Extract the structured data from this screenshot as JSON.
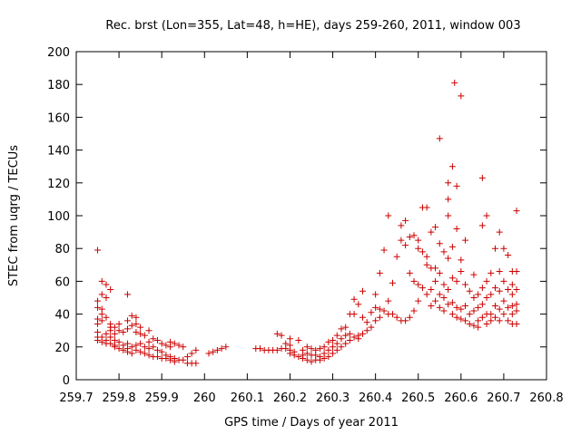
{
  "chart_data": {
    "type": "scatter",
    "title": "Rec. brst (Lon=355, Lat=48, h=HE), days 259-260, 2011, window 003",
    "xlabel": "GPS time / Days of year 2011",
    "ylabel": "STEC from uqrg / TECUs",
    "xlim": [
      259.7,
      260.8
    ],
    "ylim": [
      0,
      200
    ],
    "xticks": [
      "259.7",
      "259.8",
      "259.9",
      "260",
      "260.1",
      "260.2",
      "260.3",
      "260.4",
      "260.5",
      "260.6",
      "260.7",
      "260.8"
    ],
    "yticks": [
      "0",
      "20",
      "40",
      "60",
      "80",
      "100",
      "120",
      "140",
      "160",
      "180",
      "200"
    ],
    "grid": false,
    "marker": "+",
    "color": "#cc0000",
    "points": [
      [
        259.75,
        79
      ],
      [
        259.75,
        48
      ],
      [
        259.75,
        44
      ],
      [
        259.75,
        37
      ],
      [
        259.75,
        34
      ],
      [
        259.75,
        29
      ],
      [
        259.75,
        26
      ],
      [
        259.75,
        24
      ],
      [
        259.76,
        60
      ],
      [
        259.76,
        52
      ],
      [
        259.76,
        43
      ],
      [
        259.76,
        40
      ],
      [
        259.76,
        36
      ],
      [
        259.76,
        26
      ],
      [
        259.76,
        23
      ],
      [
        259.77,
        58
      ],
      [
        259.77,
        50
      ],
      [
        259.77,
        38
      ],
      [
        259.77,
        28
      ],
      [
        259.77,
        24
      ],
      [
        259.77,
        22
      ],
      [
        259.78,
        55
      ],
      [
        259.78,
        34
      ],
      [
        259.78,
        32
      ],
      [
        259.78,
        30
      ],
      [
        259.78,
        26
      ],
      [
        259.78,
        22
      ],
      [
        259.79,
        32
      ],
      [
        259.79,
        28
      ],
      [
        259.79,
        24
      ],
      [
        259.79,
        21
      ],
      [
        259.79,
        20
      ],
      [
        259.8,
        34
      ],
      [
        259.8,
        30
      ],
      [
        259.8,
        23
      ],
      [
        259.8,
        19
      ],
      [
        259.81,
        29
      ],
      [
        259.81,
        21
      ],
      [
        259.81,
        18
      ],
      [
        259.82,
        52
      ],
      [
        259.82,
        36
      ],
      [
        259.82,
        31
      ],
      [
        259.82,
        22
      ],
      [
        259.82,
        19
      ],
      [
        259.82,
        17
      ],
      [
        259.83,
        39
      ],
      [
        259.83,
        33
      ],
      [
        259.83,
        20
      ],
      [
        259.83,
        16
      ],
      [
        259.84,
        38
      ],
      [
        259.84,
        34
      ],
      [
        259.84,
        29
      ],
      [
        259.84,
        21
      ],
      [
        259.84,
        18
      ],
      [
        259.85,
        32
      ],
      [
        259.85,
        28
      ],
      [
        259.85,
        22
      ],
      [
        259.85,
        17
      ],
      [
        259.86,
        27
      ],
      [
        259.86,
        20
      ],
      [
        259.86,
        16
      ],
      [
        259.87,
        30
      ],
      [
        259.87,
        23
      ],
      [
        259.87,
        19
      ],
      [
        259.87,
        15
      ],
      [
        259.88,
        25
      ],
      [
        259.88,
        20
      ],
      [
        259.88,
        14
      ],
      [
        259.89,
        24
      ],
      [
        259.89,
        18
      ],
      [
        259.89,
        14
      ],
      [
        259.9,
        22
      ],
      [
        259.9,
        17
      ],
      [
        259.9,
        13
      ],
      [
        259.91,
        21
      ],
      [
        259.91,
        15
      ],
      [
        259.91,
        13
      ],
      [
        259.92,
        23
      ],
      [
        259.92,
        20
      ],
      [
        259.92,
        14
      ],
      [
        259.92,
        12
      ],
      [
        259.93,
        22
      ],
      [
        259.93,
        13
      ],
      [
        259.93,
        11
      ],
      [
        259.94,
        21
      ],
      [
        259.94,
        12
      ],
      [
        259.95,
        20
      ],
      [
        259.95,
        12
      ],
      [
        259.96,
        14
      ],
      [
        259.96,
        10
      ],
      [
        259.97,
        16
      ],
      [
        259.97,
        10
      ],
      [
        259.98,
        18
      ],
      [
        259.98,
        10
      ],
      [
        260.01,
        16
      ],
      [
        260.02,
        17
      ],
      [
        260.03,
        18
      ],
      [
        260.04,
        19
      ],
      [
        260.05,
        20
      ],
      [
        260.12,
        19
      ],
      [
        260.13,
        19
      ],
      [
        260.14,
        18
      ],
      [
        260.15,
        18
      ],
      [
        260.16,
        18
      ],
      [
        260.17,
        28
      ],
      [
        260.17,
        18
      ],
      [
        260.18,
        27
      ],
      [
        260.18,
        19
      ],
      [
        260.19,
        22
      ],
      [
        260.19,
        19
      ],
      [
        260.2,
        25
      ],
      [
        260.2,
        21
      ],
      [
        260.2,
        18
      ],
      [
        260.2,
        16
      ],
      [
        260.21,
        17
      ],
      [
        260.21,
        15
      ],
      [
        260.22,
        24
      ],
      [
        260.22,
        14
      ],
      [
        260.23,
        18
      ],
      [
        260.23,
        15
      ],
      [
        260.23,
        13
      ],
      [
        260.24,
        20
      ],
      [
        260.24,
        16
      ],
      [
        260.24,
        12
      ],
      [
        260.25,
        19
      ],
      [
        260.25,
        15
      ],
      [
        260.25,
        11
      ],
      [
        260.26,
        18
      ],
      [
        260.26,
        15
      ],
      [
        260.26,
        12
      ],
      [
        260.27,
        19
      ],
      [
        260.27,
        14
      ],
      [
        260.27,
        12
      ],
      [
        260.28,
        20
      ],
      [
        260.28,
        16
      ],
      [
        260.28,
        13
      ],
      [
        260.29,
        23
      ],
      [
        260.29,
        18
      ],
      [
        260.29,
        14
      ],
      [
        260.3,
        24
      ],
      [
        260.3,
        20
      ],
      [
        260.3,
        16
      ],
      [
        260.31,
        27
      ],
      [
        260.31,
        22
      ],
      [
        260.31,
        18
      ],
      [
        260.32,
        31
      ],
      [
        260.32,
        25
      ],
      [
        260.32,
        20
      ],
      [
        260.33,
        32
      ],
      [
        260.33,
        27
      ],
      [
        260.33,
        22
      ],
      [
        260.34,
        40
      ],
      [
        260.34,
        28
      ],
      [
        260.34,
        24
      ],
      [
        260.35,
        49
      ],
      [
        260.35,
        40
      ],
      [
        260.35,
        26
      ],
      [
        260.36,
        46
      ],
      [
        260.36,
        27
      ],
      [
        260.36,
        25
      ],
      [
        260.37,
        54
      ],
      [
        260.37,
        38
      ],
      [
        260.37,
        28
      ],
      [
        260.38,
        35
      ],
      [
        260.38,
        30
      ],
      [
        260.39,
        41
      ],
      [
        260.39,
        32
      ],
      [
        260.4,
        52
      ],
      [
        260.4,
        44
      ],
      [
        260.4,
        36
      ],
      [
        260.41,
        65
      ],
      [
        260.41,
        43
      ],
      [
        260.41,
        38
      ],
      [
        260.42,
        79
      ],
      [
        260.42,
        42
      ],
      [
        260.43,
        100
      ],
      [
        260.43,
        48
      ],
      [
        260.43,
        40
      ],
      [
        260.44,
        59
      ],
      [
        260.44,
        40
      ],
      [
        260.45,
        75
      ],
      [
        260.45,
        38
      ],
      [
        260.46,
        94
      ],
      [
        260.46,
        85
      ],
      [
        260.46,
        36
      ],
      [
        260.47,
        97
      ],
      [
        260.47,
        82
      ],
      [
        260.47,
        36
      ],
      [
        260.48,
        87
      ],
      [
        260.48,
        65
      ],
      [
        260.48,
        38
      ],
      [
        260.49,
        88
      ],
      [
        260.49,
        60
      ],
      [
        260.49,
        42
      ],
      [
        260.5,
        85
      ],
      [
        260.5,
        80
      ],
      [
        260.5,
        58
      ],
      [
        260.5,
        48
      ],
      [
        260.51,
        105
      ],
      [
        260.51,
        78
      ],
      [
        260.51,
        56
      ],
      [
        260.52,
        105
      ],
      [
        260.52,
        75
      ],
      [
        260.52,
        70
      ],
      [
        260.52,
        52
      ],
      [
        260.53,
        90
      ],
      [
        260.53,
        68
      ],
      [
        260.53,
        55
      ],
      [
        260.53,
        45
      ],
      [
        260.54,
        93
      ],
      [
        260.54,
        68
      ],
      [
        260.54,
        60
      ],
      [
        260.54,
        48
      ],
      [
        260.55,
        147
      ],
      [
        260.55,
        83
      ],
      [
        260.55,
        65
      ],
      [
        260.55,
        52
      ],
      [
        260.55,
        44
      ],
      [
        260.56,
        78
      ],
      [
        260.56,
        58
      ],
      [
        260.56,
        50
      ],
      [
        260.56,
        42
      ],
      [
        260.57,
        120
      ],
      [
        260.57,
        110
      ],
      [
        260.57,
        100
      ],
      [
        260.57,
        74
      ],
      [
        260.57,
        55
      ],
      [
        260.57,
        46
      ],
      [
        260.58,
        130
      ],
      [
        260.58,
        81
      ],
      [
        260.58,
        62
      ],
      [
        260.58,
        47
      ],
      [
        260.58,
        40
      ],
      [
        260.585,
        181
      ],
      [
        260.59,
        118
      ],
      [
        260.59,
        92
      ],
      [
        260.59,
        60
      ],
      [
        260.59,
        44
      ],
      [
        260.59,
        38
      ],
      [
        260.6,
        173
      ],
      [
        260.6,
        73
      ],
      [
        260.6,
        66
      ],
      [
        260.6,
        43
      ],
      [
        260.6,
        37
      ],
      [
        260.61,
        85
      ],
      [
        260.61,
        58
      ],
      [
        260.61,
        45
      ],
      [
        260.61,
        36
      ],
      [
        260.62,
        54
      ],
      [
        260.62,
        40
      ],
      [
        260.62,
        34
      ],
      [
        260.63,
        64
      ],
      [
        260.63,
        50
      ],
      [
        260.63,
        42
      ],
      [
        260.63,
        33
      ],
      [
        260.64,
        52
      ],
      [
        260.64,
        44
      ],
      [
        260.64,
        36
      ],
      [
        260.64,
        32
      ],
      [
        260.65,
        123
      ],
      [
        260.65,
        94
      ],
      [
        260.65,
        56
      ],
      [
        260.65,
        46
      ],
      [
        260.65,
        38
      ],
      [
        260.66,
        100
      ],
      [
        260.66,
        60
      ],
      [
        260.66,
        50
      ],
      [
        260.66,
        40
      ],
      [
        260.66,
        34
      ],
      [
        260.67,
        65
      ],
      [
        260.67,
        52
      ],
      [
        260.67,
        40
      ],
      [
        260.67,
        36
      ],
      [
        260.68,
        80
      ],
      [
        260.68,
        56
      ],
      [
        260.68,
        45
      ],
      [
        260.68,
        38
      ],
      [
        260.69,
        90
      ],
      [
        260.69,
        66
      ],
      [
        260.69,
        54
      ],
      [
        260.69,
        43
      ],
      [
        260.69,
        36
      ],
      [
        260.7,
        80
      ],
      [
        260.7,
        60
      ],
      [
        260.7,
        48
      ],
      [
        260.7,
        40
      ],
      [
        260.71,
        76
      ],
      [
        260.71,
        55
      ],
      [
        260.71,
        44
      ],
      [
        260.71,
        36
      ],
      [
        260.72,
        66
      ],
      [
        260.72,
        58
      ],
      [
        260.72,
        52
      ],
      [
        260.72,
        45
      ],
      [
        260.72,
        40
      ],
      [
        260.72,
        34
      ],
      [
        260.73,
        103
      ],
      [
        260.73,
        66
      ],
      [
        260.73,
        55
      ],
      [
        260.73,
        46
      ],
      [
        260.73,
        42
      ],
      [
        260.73,
        34
      ]
    ]
  }
}
